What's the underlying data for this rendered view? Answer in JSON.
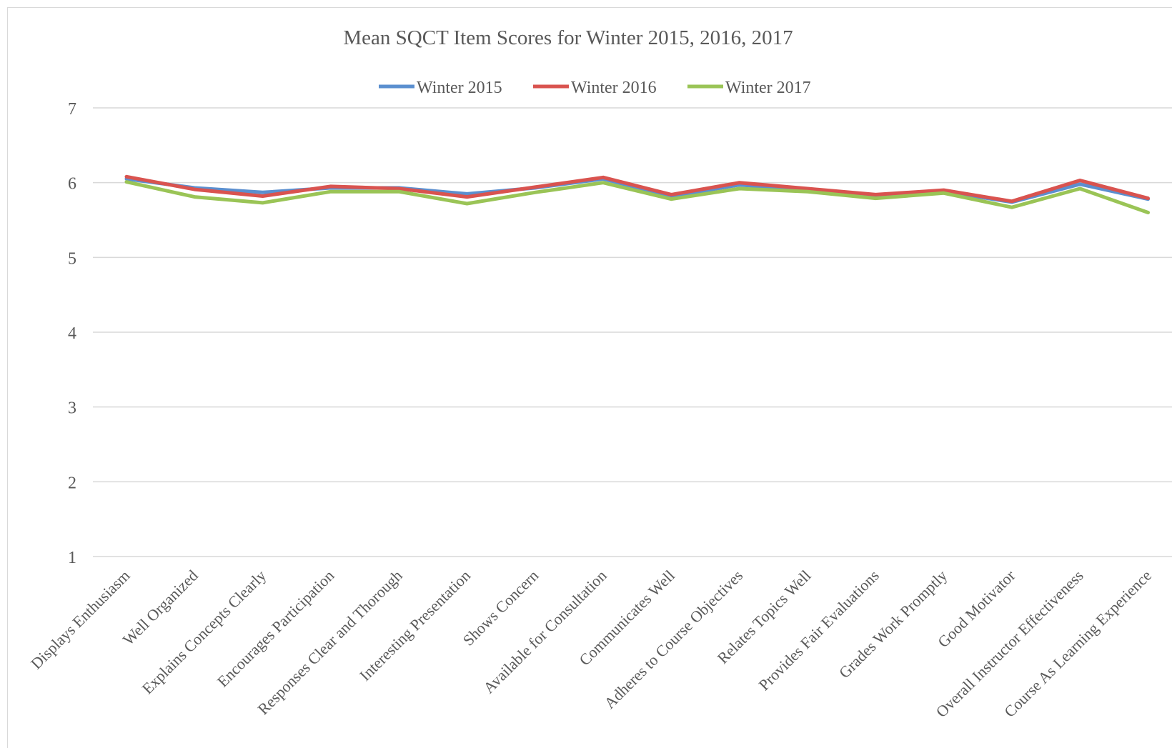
{
  "chart_data": {
    "type": "line",
    "title": "Mean SQCT Item Scores for Winter 2015, 2016, 2017",
    "xlabel": "",
    "ylabel": "",
    "ylim": [
      1,
      7
    ],
    "yticks": [
      1,
      2,
      3,
      4,
      5,
      6,
      7
    ],
    "grid": true,
    "legend_position": "top",
    "categories": [
      "Displays Enthusiasm",
      "Well Organized",
      "Explains Concepts Clearly",
      "Encourages Participation",
      "Responses Clear and Thorough",
      "Interesting Presentation",
      "Shows Concern",
      "Available for Consultation",
      "Communicates Well",
      "Adheres to Course Objectives",
      "Relates Topics Well",
      "Provides Fair Evaluations",
      "Grades Work Promptly",
      "Good Motivator",
      "Overall Instructor Effectiveness",
      "Course As Learning Experience"
    ],
    "series": [
      {
        "name": "Winter 2015",
        "color": "#5b8fcf",
        "values": [
          6.05,
          5.93,
          5.87,
          5.93,
          5.93,
          5.85,
          5.93,
          6.05,
          5.82,
          5.97,
          5.9,
          5.83,
          5.88,
          5.74,
          5.98,
          5.78
        ]
      },
      {
        "name": "Winter 2016",
        "color": "#d9534f",
        "values": [
          6.08,
          5.91,
          5.82,
          5.95,
          5.92,
          5.81,
          5.94,
          6.07,
          5.84,
          6.0,
          5.92,
          5.84,
          5.9,
          5.75,
          6.03,
          5.79
        ]
      },
      {
        "name": "Winter 2017",
        "color": "#9ac456",
        "values": [
          6.01,
          5.81,
          5.73,
          5.88,
          5.88,
          5.72,
          5.87,
          6.0,
          5.78,
          5.92,
          5.88,
          5.79,
          5.86,
          5.67,
          5.92,
          5.6
        ]
      }
    ]
  }
}
